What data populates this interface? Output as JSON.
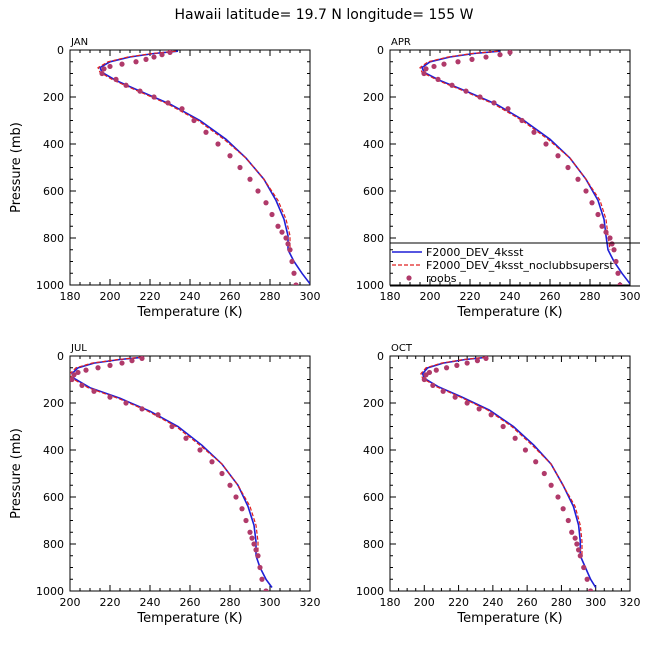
{
  "title": "Hawaii  latitude= 19.7 N longitude= 155 W",
  "colors": {
    "model": "#1f1fd6",
    "model_noclubb": "#e02020",
    "roobs": "#b03a6a",
    "axes": "#000000",
    "background": "#ffffff"
  },
  "legend": {
    "entries": [
      "F2000_DEV_4ksst",
      "F2000_DEV_4ksst_noclubbsuperst",
      "roobs"
    ],
    "placement": "APR panel, lower right"
  },
  "chart_data": [
    {
      "type": "line",
      "panel": "JAN",
      "xlabel": "Temperature (K)",
      "ylabel": "Pressure (mb)",
      "xlim": [
        180,
        300
      ],
      "ylim": [
        1000,
        0
      ],
      "xticks": [
        "180",
        "200",
        "220",
        "240",
        "260",
        "280",
        "300"
      ],
      "yticks": [
        "0",
        "200",
        "400",
        "600",
        "800",
        "1000"
      ],
      "series": [
        {
          "name": "F2000_DEV_4ksst",
          "style": "solid",
          "x": [
            234,
            222,
            210,
            200,
            195,
            196,
            203,
            215,
            230,
            245,
            258,
            268,
            277,
            283,
            287,
            289,
            289,
            292,
            296,
            300
          ],
          "y": [
            5,
            15,
            30,
            50,
            75,
            95,
            130,
            175,
            230,
            300,
            380,
            460,
            550,
            640,
            720,
            790,
            850,
            900,
            950,
            995
          ]
        },
        {
          "name": "F2000_DEV_4ksst_noclubbsuperst",
          "style": "dashed",
          "x": [
            233,
            221,
            209,
            199,
            194,
            195,
            202,
            214,
            229,
            244,
            257,
            268,
            277,
            284,
            288,
            290,
            290
          ],
          "y": [
            5,
            15,
            30,
            50,
            75,
            95,
            130,
            175,
            230,
            300,
            380,
            460,
            550,
            640,
            720,
            790,
            850
          ]
        },
        {
          "name": "roobs",
          "style": "dots",
          "x": [
            230,
            226,
            222,
            218,
            213,
            206,
            200,
            197,
            196,
            203,
            208,
            215,
            222,
            229,
            236,
            242,
            248,
            254,
            260,
            265,
            270,
            274,
            278,
            281,
            284,
            286,
            288,
            289,
            290,
            291,
            292,
            293
          ],
          "y": [
            10,
            20,
            30,
            40,
            50,
            60,
            70,
            80,
            100,
            125,
            150,
            175,
            200,
            225,
            250,
            300,
            350,
            400,
            450,
            500,
            550,
            600,
            650,
            700,
            750,
            775,
            800,
            825,
            850,
            900,
            950,
            1000
          ]
        }
      ]
    },
    {
      "type": "line",
      "panel": "APR",
      "xlabel": "Temperature (K)",
      "ylabel": "",
      "xlim": [
        180,
        300
      ],
      "ylim": [
        1000,
        0
      ],
      "xticks": [
        "180",
        "200",
        "220",
        "240",
        "260",
        "280",
        "300"
      ],
      "yticks": [
        "0",
        "200",
        "400",
        "600",
        "800",
        "1000"
      ],
      "series": [
        {
          "name": "F2000_DEV_4ksst",
          "style": "solid",
          "x": [
            235,
            222,
            210,
            200,
            196,
            197,
            205,
            218,
            233,
            247,
            260,
            270,
            278,
            284,
            287,
            288,
            289,
            292,
            296,
            300
          ],
          "y": [
            5,
            15,
            30,
            50,
            75,
            95,
            130,
            175,
            230,
            300,
            380,
            460,
            550,
            640,
            720,
            790,
            850,
            900,
            950,
            995
          ]
        },
        {
          "name": "F2000_DEV_4ksst_noclubbsuperst",
          "style": "dashed",
          "x": [
            234,
            221,
            209,
            199,
            195,
            196,
            204,
            217,
            232,
            246,
            259,
            270,
            278,
            285,
            288,
            289,
            290
          ],
          "y": [
            5,
            15,
            30,
            50,
            75,
            95,
            130,
            175,
            230,
            300,
            380,
            460,
            550,
            640,
            720,
            790,
            850
          ]
        },
        {
          "name": "roobs",
          "style": "dots",
          "x": [
            240,
            235,
            228,
            221,
            214,
            207,
            202,
            198,
            197,
            204,
            211,
            218,
            225,
            232,
            239,
            246,
            252,
            258,
            264,
            269,
            274,
            278,
            281,
            284,
            286,
            288,
            290,
            291,
            292,
            293,
            294,
            295
          ],
          "y": [
            10,
            20,
            30,
            40,
            50,
            60,
            70,
            80,
            100,
            125,
            150,
            175,
            200,
            225,
            250,
            300,
            350,
            400,
            450,
            500,
            550,
            600,
            650,
            700,
            750,
            775,
            800,
            825,
            850,
            900,
            950,
            1000
          ]
        }
      ]
    },
    {
      "type": "line",
      "panel": "JUL",
      "xlabel": "Temperature (K)",
      "ylabel": "Pressure (mb)",
      "xlim": [
        200,
        320
      ],
      "ylim": [
        1000,
        0
      ],
      "xticks": [
        "200",
        "220",
        "240",
        "260",
        "280",
        "300",
        "320"
      ],
      "yticks": [
        "0",
        "200",
        "400",
        "600",
        "800",
        "1000"
      ],
      "series": [
        {
          "name": "F2000_DEV_4ksst",
          "style": "solid",
          "x": [
            237,
            225,
            212,
            204,
            201,
            202,
            210,
            225,
            240,
            254,
            266,
            276,
            284,
            289,
            292,
            293,
            293,
            295,
            298,
            301
          ],
          "y": [
            5,
            15,
            30,
            50,
            75,
            95,
            135,
            180,
            235,
            300,
            380,
            460,
            550,
            640,
            720,
            790,
            850,
            900,
            950,
            985
          ]
        },
        {
          "name": "F2000_DEV_4ksst_noclubbsuperst",
          "style": "dashed",
          "x": [
            236,
            224,
            211,
            203,
            200,
            201,
            209,
            224,
            239,
            253,
            265,
            276,
            284,
            290,
            293,
            294,
            294
          ],
          "y": [
            5,
            15,
            30,
            50,
            75,
            95,
            135,
            180,
            235,
            300,
            380,
            460,
            550,
            640,
            720,
            790,
            850
          ]
        },
        {
          "name": "roobs",
          "style": "dots",
          "x": [
            236,
            231,
            226,
            220,
            214,
            208,
            204,
            202,
            201,
            206,
            212,
            220,
            228,
            236,
            244,
            251,
            258,
            265,
            271,
            276,
            280,
            283,
            286,
            288,
            290,
            291,
            292,
            293,
            294,
            295,
            296,
            298
          ],
          "y": [
            10,
            20,
            30,
            40,
            50,
            60,
            70,
            80,
            100,
            125,
            150,
            175,
            200,
            225,
            250,
            300,
            350,
            400,
            450,
            500,
            550,
            600,
            650,
            700,
            750,
            775,
            800,
            825,
            850,
            900,
            950,
            1000
          ]
        }
      ]
    },
    {
      "type": "line",
      "panel": "OCT",
      "xlabel": "Temperature (K)",
      "ylabel": "",
      "xlim": [
        180,
        320
      ],
      "ylim": [
        1000,
        0
      ],
      "xticks": [
        "180",
        "200",
        "220",
        "240",
        "260",
        "280",
        "300",
        "320"
      ],
      "yticks": [
        "0",
        "200",
        "400",
        "600",
        "800",
        "1000"
      ],
      "series": [
        {
          "name": "F2000_DEV_4ksst",
          "style": "solid",
          "x": [
            237,
            224,
            211,
            202,
            199,
            200,
            208,
            222,
            238,
            252,
            264,
            274,
            281,
            287,
            290,
            291,
            291,
            294,
            297,
            300
          ],
          "y": [
            5,
            15,
            30,
            50,
            75,
            95,
            130,
            175,
            230,
            300,
            380,
            460,
            550,
            640,
            720,
            790,
            850,
            900,
            950,
            985
          ]
        },
        {
          "name": "F2000_DEV_4ksst_noclubbsuperst",
          "style": "dashed",
          "x": [
            236,
            223,
            210,
            201,
            198,
            199,
            207,
            221,
            237,
            251,
            263,
            274,
            281,
            288,
            291,
            292,
            292
          ],
          "y": [
            5,
            15,
            30,
            50,
            75,
            95,
            130,
            175,
            230,
            300,
            380,
            460,
            550,
            640,
            720,
            790,
            850
          ]
        },
        {
          "name": "roobs",
          "style": "dots",
          "x": [
            236,
            231,
            225,
            219,
            213,
            207,
            203,
            201,
            200,
            205,
            211,
            218,
            225,
            232,
            239,
            246,
            253,
            259,
            265,
            270,
            274,
            278,
            281,
            284,
            286,
            288,
            289,
            290,
            291,
            293,
            295,
            297
          ],
          "y": [
            10,
            20,
            30,
            40,
            50,
            60,
            70,
            80,
            100,
            125,
            150,
            175,
            200,
            225,
            250,
            300,
            350,
            400,
            450,
            500,
            550,
            600,
            650,
            700,
            750,
            775,
            800,
            825,
            850,
            900,
            950,
            1000
          ]
        }
      ]
    }
  ]
}
